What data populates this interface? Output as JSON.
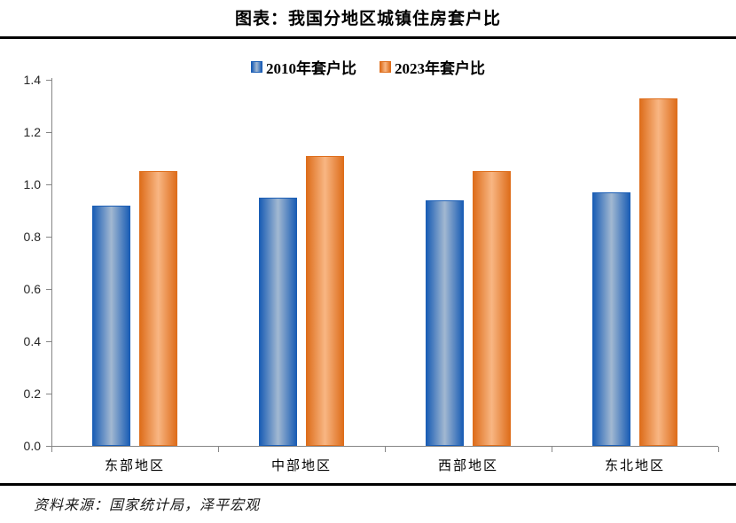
{
  "header": {
    "title": "图表：我国分地区城镇住房套户比"
  },
  "chart_data": {
    "type": "bar",
    "title": "图表：我国分地区城镇住房套户比",
    "categories": [
      "东部地区",
      "中部地区",
      "西部地区",
      "东北地区"
    ],
    "series": [
      {
        "name": "2010年套户比",
        "values": [
          0.92,
          0.95,
          0.94,
          0.97
        ],
        "edge_color": "#1B5EB5",
        "center_color": "#A2B8D1"
      },
      {
        "name": "2023年套户比",
        "values": [
          1.05,
          1.11,
          1.05,
          1.33
        ],
        "edge_color": "#DE6E1C",
        "center_color": "#F8B683"
      }
    ],
    "xlabel": "",
    "ylabel": "",
    "ylim": [
      0,
      1.4
    ],
    "y_tick_labels": [
      "0.0",
      "0.2",
      "0.4",
      "0.6",
      "0.8",
      "1.0",
      "1.2",
      "1.4"
    ],
    "grid": false,
    "legend_position": "top-center",
    "axis_color": "#868686"
  },
  "footer": {
    "source": "资料来源：国家统计局，泽平宏观"
  }
}
